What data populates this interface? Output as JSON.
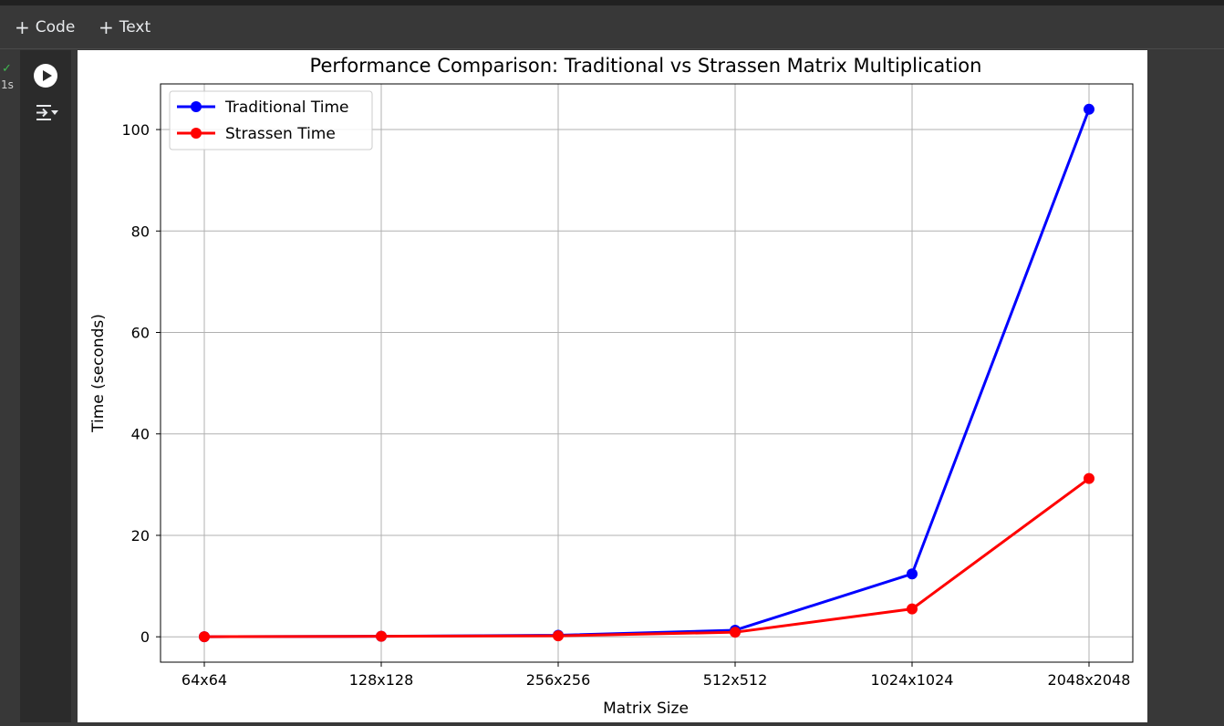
{
  "toolbar": {
    "code_label": "Code",
    "text_label": "Text",
    "plus_glyph": "+"
  },
  "cell": {
    "status_icon": "check-icon",
    "exec_time": "1s",
    "status_color": "#3fb950"
  },
  "chart_data": {
    "type": "line",
    "title": "Performance Comparison: Traditional vs Strassen Matrix Multiplication",
    "xlabel": "Matrix Size",
    "ylabel": "Time (seconds)",
    "categories": [
      "64x64",
      "128x128",
      "256x256",
      "512x512",
      "1024x1024",
      "2048x2048"
    ],
    "ylim": [
      -5,
      109
    ],
    "yticks": [
      0,
      20,
      40,
      60,
      80,
      100
    ],
    "grid": true,
    "legend_position": "top-left",
    "series": [
      {
        "name": "Traditional Time",
        "color": "#0000ff",
        "values": [
          0.02,
          0.1,
          0.3,
          1.3,
          12.4,
          104.0
        ]
      },
      {
        "name": "Strassen Time",
        "color": "#ff0000",
        "values": [
          0.02,
          0.1,
          0.2,
          0.9,
          5.5,
          31.2
        ]
      }
    ]
  }
}
